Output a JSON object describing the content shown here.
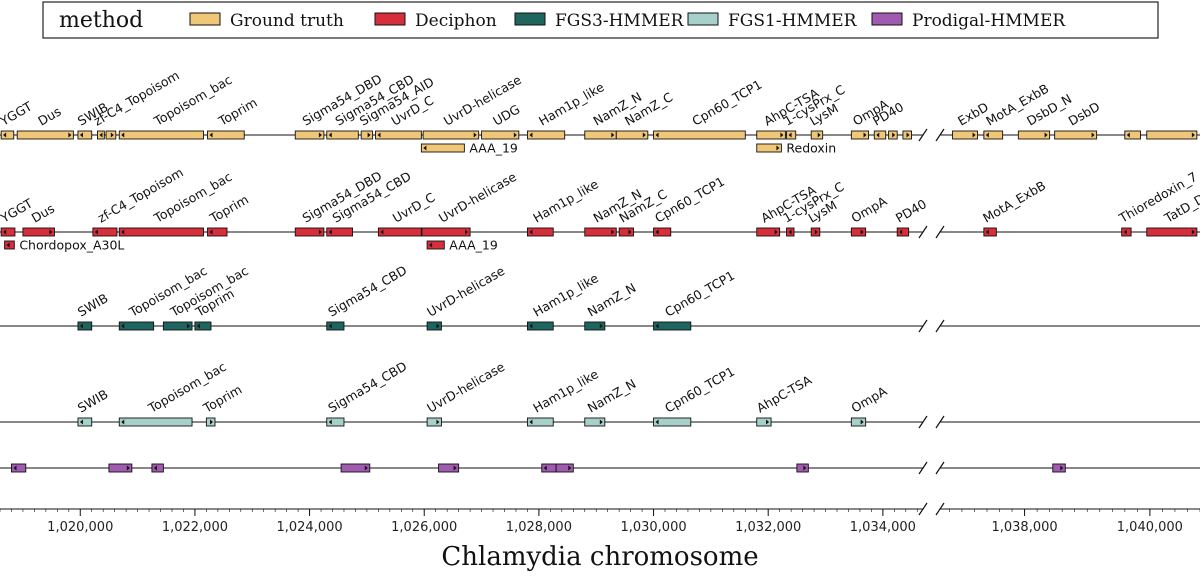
{
  "chart_data": {
    "type": "gene-track",
    "xlabel": "Chlamydia chromosome",
    "xlim": [
      1018600,
      1040800
    ],
    "axis_break": {
      "data_from": 1034700,
      "data_to": 1036650
    },
    "x_ticks": [
      1020000,
      1022000,
      1024000,
      1026000,
      1028000,
      1030000,
      1032000,
      1034000,
      1038000,
      1040000
    ],
    "x_tick_labels": [
      "1,020,000",
      "1,022,000",
      "1,024,000",
      "1,026,000",
      "1,028,000",
      "1,030,000",
      "1,032,000",
      "1,034,000",
      "1,038,000",
      "1,040,000"
    ],
    "legend": {
      "title": "method",
      "position": "top",
      "entries": [
        {
          "label": "Ground truth",
          "color": "#f0c777"
        },
        {
          "label": "Deciphon",
          "color": "#d62e3a"
        },
        {
          "label": "FGS3-HMMER",
          "color": "#1e6560"
        },
        {
          "label": "FGS1-HMMER",
          "color": "#a8d0cb"
        },
        {
          "label": "Prodigal-HMMER",
          "color": "#a05ab0"
        }
      ]
    },
    "tracks": [
      {
        "method": "Ground truth",
        "color": "#f0c777",
        "genes": [
          {
            "name": "YGGT",
            "start": 1018620,
            "end": 1018840,
            "strand": "-",
            "label": "top"
          },
          {
            "name": "Dus",
            "start": 1018900,
            "end": 1019880,
            "strand": "+",
            "label": "top"
          },
          {
            "name": "SWIB",
            "start": 1019960,
            "end": 1020200,
            "strand": "-",
            "label": "top"
          },
          {
            "name": "zf-C4_Topoisom",
            "start": 1020300,
            "end": 1020420,
            "strand": "-",
            "label": "top"
          },
          {
            "name": "",
            "start": 1020450,
            "end": 1020620,
            "strand": "+",
            "label": "none"
          },
          {
            "name": "Topoisom_bac",
            "start": 1020680,
            "end": 1022150,
            "strand": "-",
            "label": "top"
          },
          {
            "name": "Toprim",
            "start": 1022220,
            "end": 1022860,
            "strand": "-",
            "label": "top"
          },
          {
            "name": "Sigma54_DBD",
            "start": 1023750,
            "end": 1024250,
            "strand": "+",
            "label": "top"
          },
          {
            "name": "Sigma54_CBD",
            "start": 1024300,
            "end": 1024850,
            "strand": "-",
            "label": "top"
          },
          {
            "name": "Sigma54_AID",
            "start": 1024900,
            "end": 1025100,
            "strand": "+",
            "label": "top"
          },
          {
            "name": "UvrD_C",
            "start": 1025150,
            "end": 1025950,
            "strand": "-",
            "label": "top"
          },
          {
            "name": "UvrD-helicase",
            "start": 1025980,
            "end": 1026950,
            "strand": "+",
            "label": "top"
          },
          {
            "name": "UDG",
            "start": 1027000,
            "end": 1027650,
            "strand": "+",
            "label": "top"
          },
          {
            "name": "Ham1p_like",
            "start": 1027800,
            "end": 1028450,
            "strand": "-",
            "label": "top"
          },
          {
            "name": "NamZ_N",
            "start": 1028800,
            "end": 1029350,
            "strand": "+",
            "label": "top"
          },
          {
            "name": "NamZ_C",
            "start": 1029350,
            "end": 1029900,
            "strand": "+",
            "label": "top"
          },
          {
            "name": "Cpn60_TCP1",
            "start": 1030000,
            "end": 1031600,
            "strand": "-",
            "label": "top"
          },
          {
            "name": "AhpC-TSA",
            "start": 1031800,
            "end": 1032300,
            "strand": "+",
            "label": "top"
          },
          {
            "name": "1-cysPrx_C",
            "start": 1032320,
            "end": 1032480,
            "strand": "-",
            "label": "top"
          },
          {
            "name": "LysM",
            "start": 1032750,
            "end": 1032950,
            "strand": "+",
            "label": "top"
          },
          {
            "name": "OmpA",
            "start": 1033450,
            "end": 1033750,
            "strand": "+",
            "label": "top"
          },
          {
            "name": "PD40",
            "start": 1033850,
            "end": 1034050,
            "strand": "-",
            "label": "top"
          },
          {
            "name": "",
            "start": 1034100,
            "end": 1034250,
            "strand": "+",
            "label": "none"
          },
          {
            "name": "",
            "start": 1034350,
            "end": 1034500,
            "strand": "+",
            "label": "none"
          },
          {
            "name": "ExbD",
            "start": 1036850,
            "end": 1037250,
            "strand": "+",
            "label": "top"
          },
          {
            "name": "MotA_ExbB",
            "start": 1037350,
            "end": 1037650,
            "strand": "-",
            "label": "top"
          },
          {
            "name": "DsbD_N",
            "start": 1037900,
            "end": 1038400,
            "strand": "+",
            "label": "top"
          },
          {
            "name": "DsbD",
            "start": 1038480,
            "end": 1039150,
            "strand": "+",
            "label": "top"
          },
          {
            "name": "",
            "start": 1039600,
            "end": 1039850,
            "strand": "-",
            "label": "none"
          },
          {
            "name": "",
            "start": 1039950,
            "end": 1040750,
            "strand": "+",
            "label": "none"
          },
          {
            "name": "AAA_19",
            "start": 1025950,
            "end": 1026700,
            "strand": "-",
            "label": "side",
            "sub": true
          },
          {
            "name": "Redoxin",
            "start": 1031800,
            "end": 1032230,
            "strand": "+",
            "label": "side",
            "sub": true
          }
        ]
      },
      {
        "method": "Deciphon",
        "color": "#d62e3a",
        "genes": [
          {
            "name": "YGGT",
            "start": 1018620,
            "end": 1018860,
            "strand": "-",
            "label": "top"
          },
          {
            "name": "Dus",
            "start": 1019000,
            "end": 1019550,
            "strand": "+",
            "label": "top"
          },
          {
            "name": "zf-C4_Topoisom",
            "start": 1020220,
            "end": 1020640,
            "strand": "-",
            "label": "top"
          },
          {
            "name": "Topoisom_bac",
            "start": 1020680,
            "end": 1022150,
            "strand": "-",
            "label": "top"
          },
          {
            "name": "Toprim",
            "start": 1022220,
            "end": 1022560,
            "strand": "-",
            "label": "top"
          },
          {
            "name": "Sigma54_DBD",
            "start": 1023750,
            "end": 1024250,
            "strand": "+",
            "label": "top"
          },
          {
            "name": "Sigma54_CBD",
            "start": 1024300,
            "end": 1024750,
            "strand": "-",
            "label": "top"
          },
          {
            "name": "UvrD_C",
            "start": 1025200,
            "end": 1025950,
            "strand": "-",
            "label": "top"
          },
          {
            "name": "UvrD-helicase",
            "start": 1025960,
            "end": 1026800,
            "strand": "+",
            "label": "top"
          },
          {
            "name": "Ham1p_like",
            "start": 1027800,
            "end": 1028250,
            "strand": "-",
            "label": "top"
          },
          {
            "name": "NamZ_N",
            "start": 1028800,
            "end": 1029350,
            "strand": "+",
            "label": "top"
          },
          {
            "name": "NamZ_C",
            "start": 1029400,
            "end": 1029650,
            "strand": "+",
            "label": "top"
          },
          {
            "name": "Cpn60_TCP1",
            "start": 1030000,
            "end": 1030300,
            "strand": "-",
            "label": "top"
          },
          {
            "name": "AhpC-TSA",
            "start": 1031800,
            "end": 1032200,
            "strand": "+",
            "label": "top"
          },
          {
            "name": "1-cysPrx_C",
            "start": 1032320,
            "end": 1032450,
            "strand": "-",
            "label": "top"
          },
          {
            "name": "LysM",
            "start": 1032750,
            "end": 1032900,
            "strand": "+",
            "label": "top"
          },
          {
            "name": "OmpA",
            "start": 1033450,
            "end": 1033700,
            "strand": "+",
            "label": "top"
          },
          {
            "name": "PD40",
            "start": 1034250,
            "end": 1034450,
            "strand": "-",
            "label": "top"
          },
          {
            "name": "MotA_ExbB",
            "start": 1037350,
            "end": 1037550,
            "strand": "-",
            "label": "top"
          },
          {
            "name": "Thioredoxin_7",
            "start": 1039550,
            "end": 1039700,
            "strand": "-",
            "label": "top"
          },
          {
            "name": "TatD_DNase",
            "start": 1039950,
            "end": 1040750,
            "strand": "+",
            "label": "top"
          },
          {
            "name": "Chordopox_A30L",
            "start": 1018680,
            "end": 1018850,
            "strand": "-",
            "label": "side",
            "sub": true
          },
          {
            "name": "AAA_19",
            "start": 1026050,
            "end": 1026350,
            "strand": "-",
            "label": "side",
            "sub": true
          }
        ]
      },
      {
        "method": "FGS3-HMMER",
        "color": "#1e6560",
        "genes": [
          {
            "name": "SWIB",
            "start": 1019960,
            "end": 1020200,
            "strand": "-",
            "label": "top"
          },
          {
            "name": "Topoisom_bac",
            "start": 1020680,
            "end": 1021280,
            "strand": "-",
            "label": "top"
          },
          {
            "name": "Topoisom_bac",
            "start": 1021450,
            "end": 1021950,
            "strand": "+",
            "label": "top"
          },
          {
            "name": "Toprim",
            "start": 1022000,
            "end": 1022280,
            "strand": "-",
            "label": "top"
          },
          {
            "name": "Sigma54_CBD",
            "start": 1024300,
            "end": 1024600,
            "strand": "-",
            "label": "top"
          },
          {
            "name": "UvrD-helicase",
            "start": 1026050,
            "end": 1026300,
            "strand": "+",
            "label": "top"
          },
          {
            "name": "Ham1p_like",
            "start": 1027800,
            "end": 1028250,
            "strand": "-",
            "label": "top"
          },
          {
            "name": "NamZ_N",
            "start": 1028800,
            "end": 1029150,
            "strand": "+",
            "label": "top"
          },
          {
            "name": "Cpn60_TCP1",
            "start": 1030000,
            "end": 1030650,
            "strand": "-",
            "label": "top"
          }
        ]
      },
      {
        "method": "FGS1-HMMER",
        "color": "#a8d0cb",
        "genes": [
          {
            "name": "SWIB",
            "start": 1019960,
            "end": 1020200,
            "strand": "-",
            "label": "top"
          },
          {
            "name": "Topoisom_bac",
            "start": 1020680,
            "end": 1021950,
            "strand": "-",
            "label": "top"
          },
          {
            "name": "Toprim",
            "start": 1022200,
            "end": 1022350,
            "strand": "+",
            "label": "top"
          },
          {
            "name": "Sigma54_CBD",
            "start": 1024300,
            "end": 1024600,
            "strand": "-",
            "label": "top"
          },
          {
            "name": "UvrD-helicase",
            "start": 1026050,
            "end": 1026300,
            "strand": "+",
            "label": "top"
          },
          {
            "name": "Ham1p_like",
            "start": 1027800,
            "end": 1028250,
            "strand": "-",
            "label": "top"
          },
          {
            "name": "NamZ_N",
            "start": 1028800,
            "end": 1029150,
            "strand": "+",
            "label": "top"
          },
          {
            "name": "Cpn60_TCP1",
            "start": 1030000,
            "end": 1030650,
            "strand": "-",
            "label": "top"
          },
          {
            "name": "AhpC-TSA",
            "start": 1031800,
            "end": 1032050,
            "strand": "+",
            "label": "top"
          },
          {
            "name": "OmpA",
            "start": 1033450,
            "end": 1033700,
            "strand": "+",
            "label": "top"
          }
        ]
      },
      {
        "method": "Prodigal-HMMER",
        "color": "#a05ab0",
        "genes": [
          {
            "name": "",
            "start": 1018800,
            "end": 1019050,
            "strand": "-",
            "label": "none"
          },
          {
            "name": "",
            "start": 1020500,
            "end": 1020900,
            "strand": "+",
            "label": "none"
          },
          {
            "name": "",
            "start": 1021250,
            "end": 1021450,
            "strand": "-",
            "label": "none"
          },
          {
            "name": "",
            "start": 1024550,
            "end": 1025050,
            "strand": "+",
            "label": "none"
          },
          {
            "name": "",
            "start": 1026250,
            "end": 1026600,
            "strand": "+",
            "label": "none"
          },
          {
            "name": "",
            "start": 1028050,
            "end": 1028300,
            "strand": "-",
            "label": "none"
          },
          {
            "name": "",
            "start": 1028300,
            "end": 1028600,
            "strand": "+",
            "label": "none"
          },
          {
            "name": "",
            "start": 1032500,
            "end": 1032700,
            "strand": "+",
            "label": "none"
          },
          {
            "name": "",
            "start": 1038450,
            "end": 1038650,
            "strand": "+",
            "label": "none"
          }
        ]
      }
    ]
  }
}
